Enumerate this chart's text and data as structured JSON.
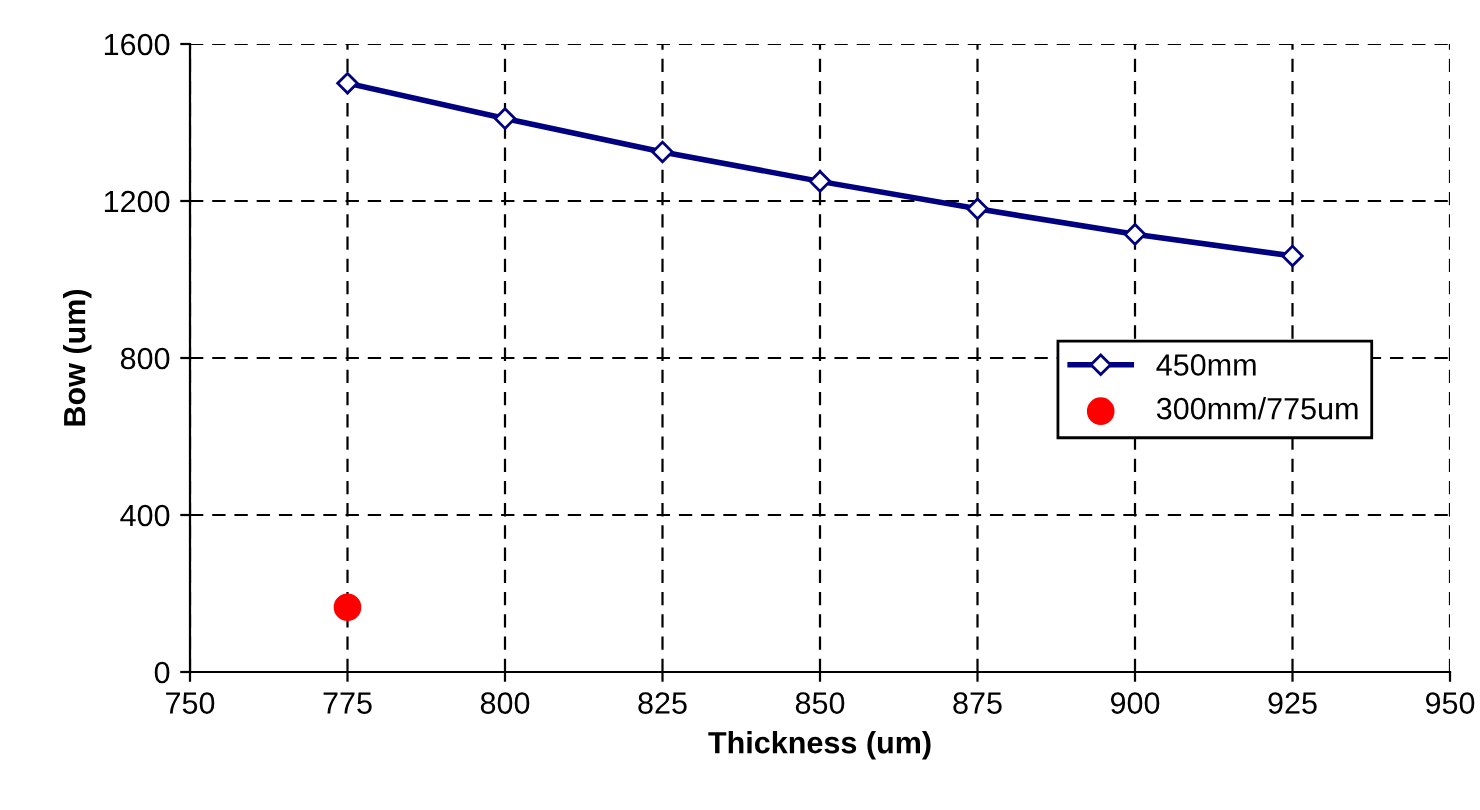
{
  "chart_data": {
    "type": "line",
    "xlabel": "Thickness (um)",
    "ylabel": "Bow (um)",
    "series": [
      {
        "name": "450mm",
        "color": "#000080",
        "marker": "diamond",
        "x": [
          775,
          800,
          825,
          850,
          875,
          900,
          925
        ],
        "values": [
          1500,
          1410,
          1325,
          1250,
          1180,
          1115,
          1060
        ]
      },
      {
        "name": "300mm/775um",
        "type": "scatter",
        "color": "#ff0000",
        "marker": "circle",
        "x": [
          775
        ],
        "values": [
          165
        ]
      }
    ],
    "xlim": [
      750,
      950
    ],
    "xticks": [
      750,
      775,
      800,
      825,
      850,
      875,
      900,
      925,
      950
    ],
    "ylim": [
      0,
      1600
    ],
    "yticks": [
      0,
      400,
      800,
      1200,
      1600
    ],
    "grid": true,
    "legend": "right"
  }
}
